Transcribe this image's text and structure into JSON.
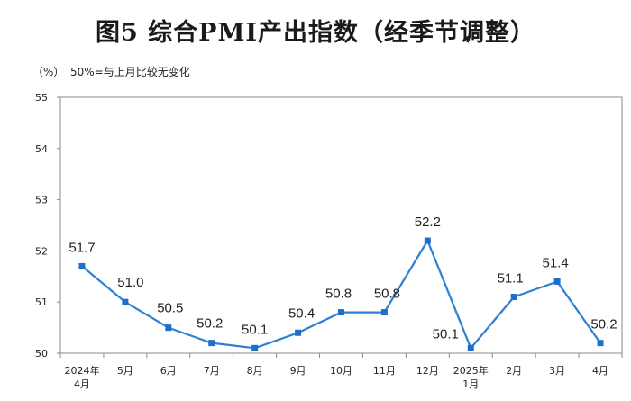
{
  "chart_data": {
    "type": "line",
    "title": "图5  综合PMI产出指数（经季节调整）",
    "unit": "（%）",
    "note": "50%=与上月比较无变化",
    "categories": [
      "2024年\n4月",
      "5月",
      "6月",
      "7月",
      "8月",
      "9月",
      "10月",
      "11月",
      "12月",
      "2025年\n1月",
      "2月",
      "3月",
      "4月"
    ],
    "series": [
      {
        "values": [
          51.7,
          51.0,
          50.5,
          50.2,
          50.1,
          50.4,
          50.8,
          50.8,
          52.2,
          50.1,
          51.1,
          51.4,
          50.2
        ]
      }
    ],
    "data_labels": [
      "51.7",
      "51.0",
      "50.5",
      "50.2",
      "50.1",
      "50.4",
      "50.8",
      "50.8",
      "52.2",
      "50.1",
      "51.1",
      "51.4",
      "50.2"
    ],
    "ylim": [
      50,
      55
    ],
    "yticks": [
      50,
      51,
      52,
      53,
      54,
      55
    ],
    "grid": false,
    "line_color": "#2e7fd6",
    "marker_color": "#1f6fc9",
    "axis_color": "#8a8a8a"
  }
}
